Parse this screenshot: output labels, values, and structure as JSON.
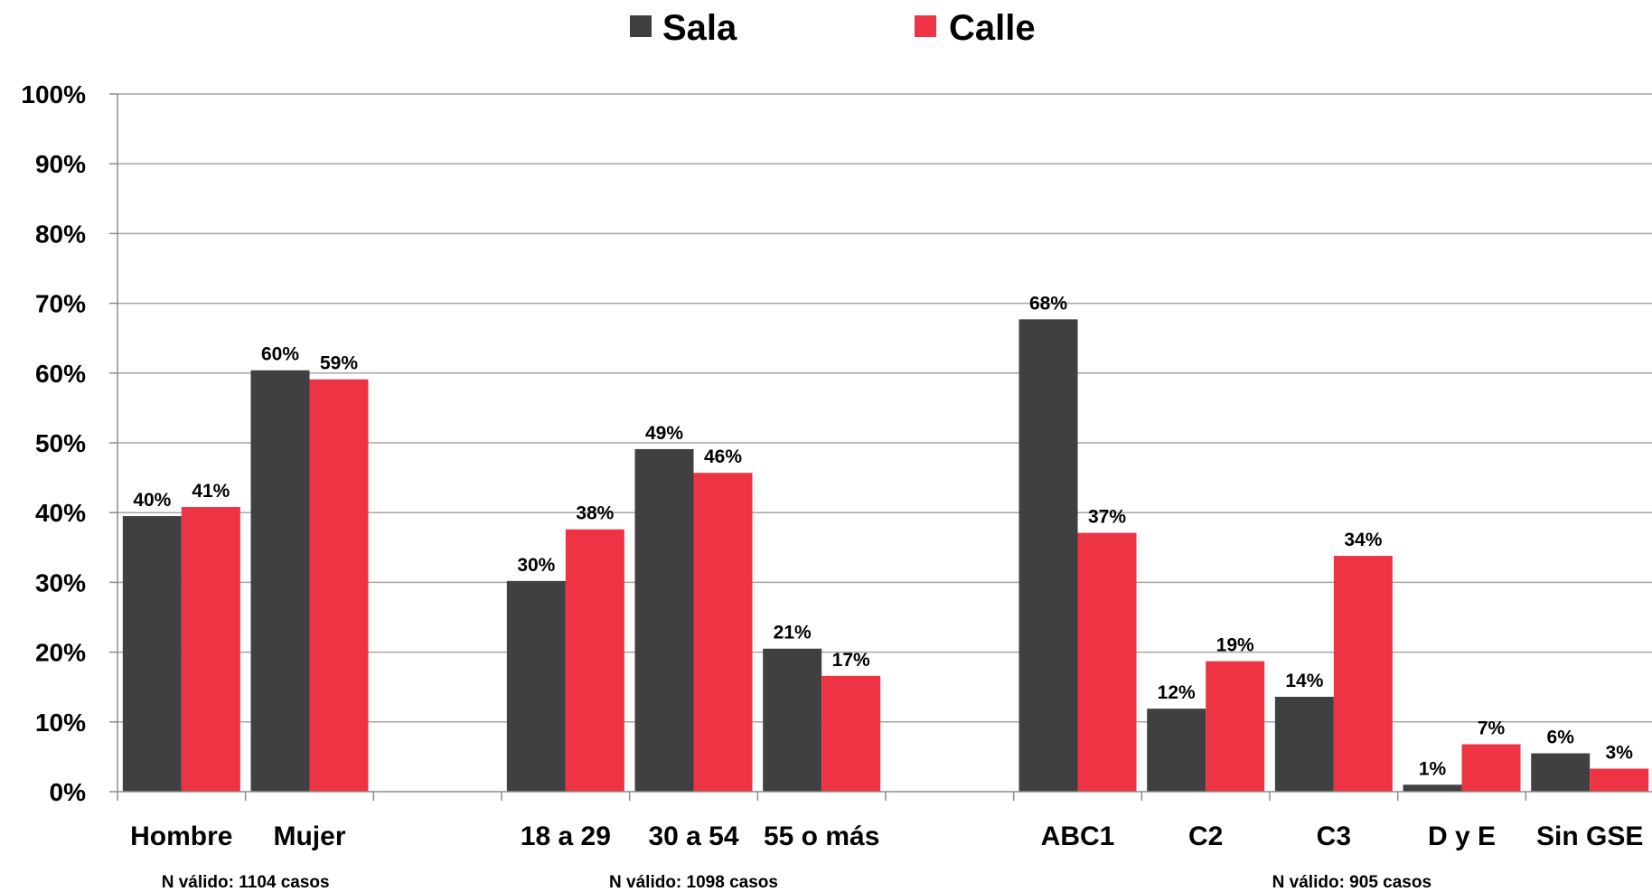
{
  "chart_data": {
    "type": "bar",
    "title": "",
    "xlabel": "",
    "ylabel": "",
    "ylim": [
      0,
      100
    ],
    "yticks": [
      "0%",
      "10%",
      "20%",
      "30%",
      "40%",
      "50%",
      "60%",
      "70%",
      "80%",
      "90%",
      "100%"
    ],
    "grid": true,
    "legend_position": "top-center",
    "categories": [
      "Hombre",
      "Mujer",
      "18 a 29",
      "30 a 54",
      "55 o más",
      "ABC1",
      "C2",
      "C3",
      "D y E",
      "Sin GSE"
    ],
    "series": [
      {
        "name": "Sala",
        "color": "#404040",
        "values": [
          39.5,
          60.4,
          30.2,
          49.1,
          20.5,
          67.7,
          11.9,
          13.6,
          1.0,
          5.5
        ],
        "labels": [
          "40%",
          "60%",
          "30%",
          "49%",
          "21%",
          "68%",
          "12%",
          "14%",
          "1%",
          "6%"
        ]
      },
      {
        "name": "Calle",
        "color": "#ee3444",
        "values": [
          40.8,
          59.1,
          37.6,
          45.7,
          16.6,
          37.1,
          18.7,
          33.8,
          6.8,
          3.3
        ],
        "labels": [
          "41%",
          "59%",
          "38%",
          "46%",
          "17%",
          "37%",
          "19%",
          "34%",
          "7%",
          "3%"
        ]
      }
    ],
    "groups": [
      {
        "note": "N válido: 1104 casos"
      },
      {
        "note": "N válido: 1098 casos"
      },
      {
        "note": "N válido: 905 casos"
      }
    ]
  }
}
